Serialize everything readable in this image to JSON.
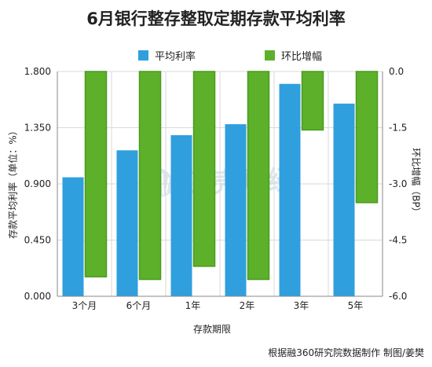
{
  "title": "6月银行整存整取定期存款平均利率",
  "footer": "根据融360研究院数据制作 制图/姜樊",
  "watermark": "贝壳财经",
  "colors": {
    "rate": "#2f9fde",
    "change": "#5db12a",
    "change_border": "#4a9a1f",
    "grid": "#d9d9d9",
    "axis": "#888888"
  },
  "chart_data": {
    "type": "bar",
    "xlabel": "存款期限",
    "ylabel": "存款平均利率（单位：%）",
    "y2label": "环比增幅（BP）",
    "categories": [
      "3个月",
      "6个月",
      "1年",
      "2年",
      "3年",
      "5年"
    ],
    "ylim": [
      0,
      1.8
    ],
    "y2lim": [
      -6,
      0
    ],
    "yticks": [
      "0.000",
      "0.450",
      "0.900",
      "1.350",
      "1.800"
    ],
    "y2ticks": [
      "0.0",
      "-1.5",
      "-3.0",
      "-4.5",
      "-6.0"
    ],
    "grid": true,
    "legend_position": "top",
    "series": [
      {
        "name": "平均利率",
        "axis": "left",
        "values": [
          0.953,
          1.169,
          1.29,
          1.378,
          1.701,
          1.543
        ]
      },
      {
        "name": "环比增幅",
        "axis": "right",
        "values": [
          -5.48,
          -5.55,
          -5.2,
          -5.55,
          -1.56,
          -3.5
        ]
      }
    ]
  }
}
